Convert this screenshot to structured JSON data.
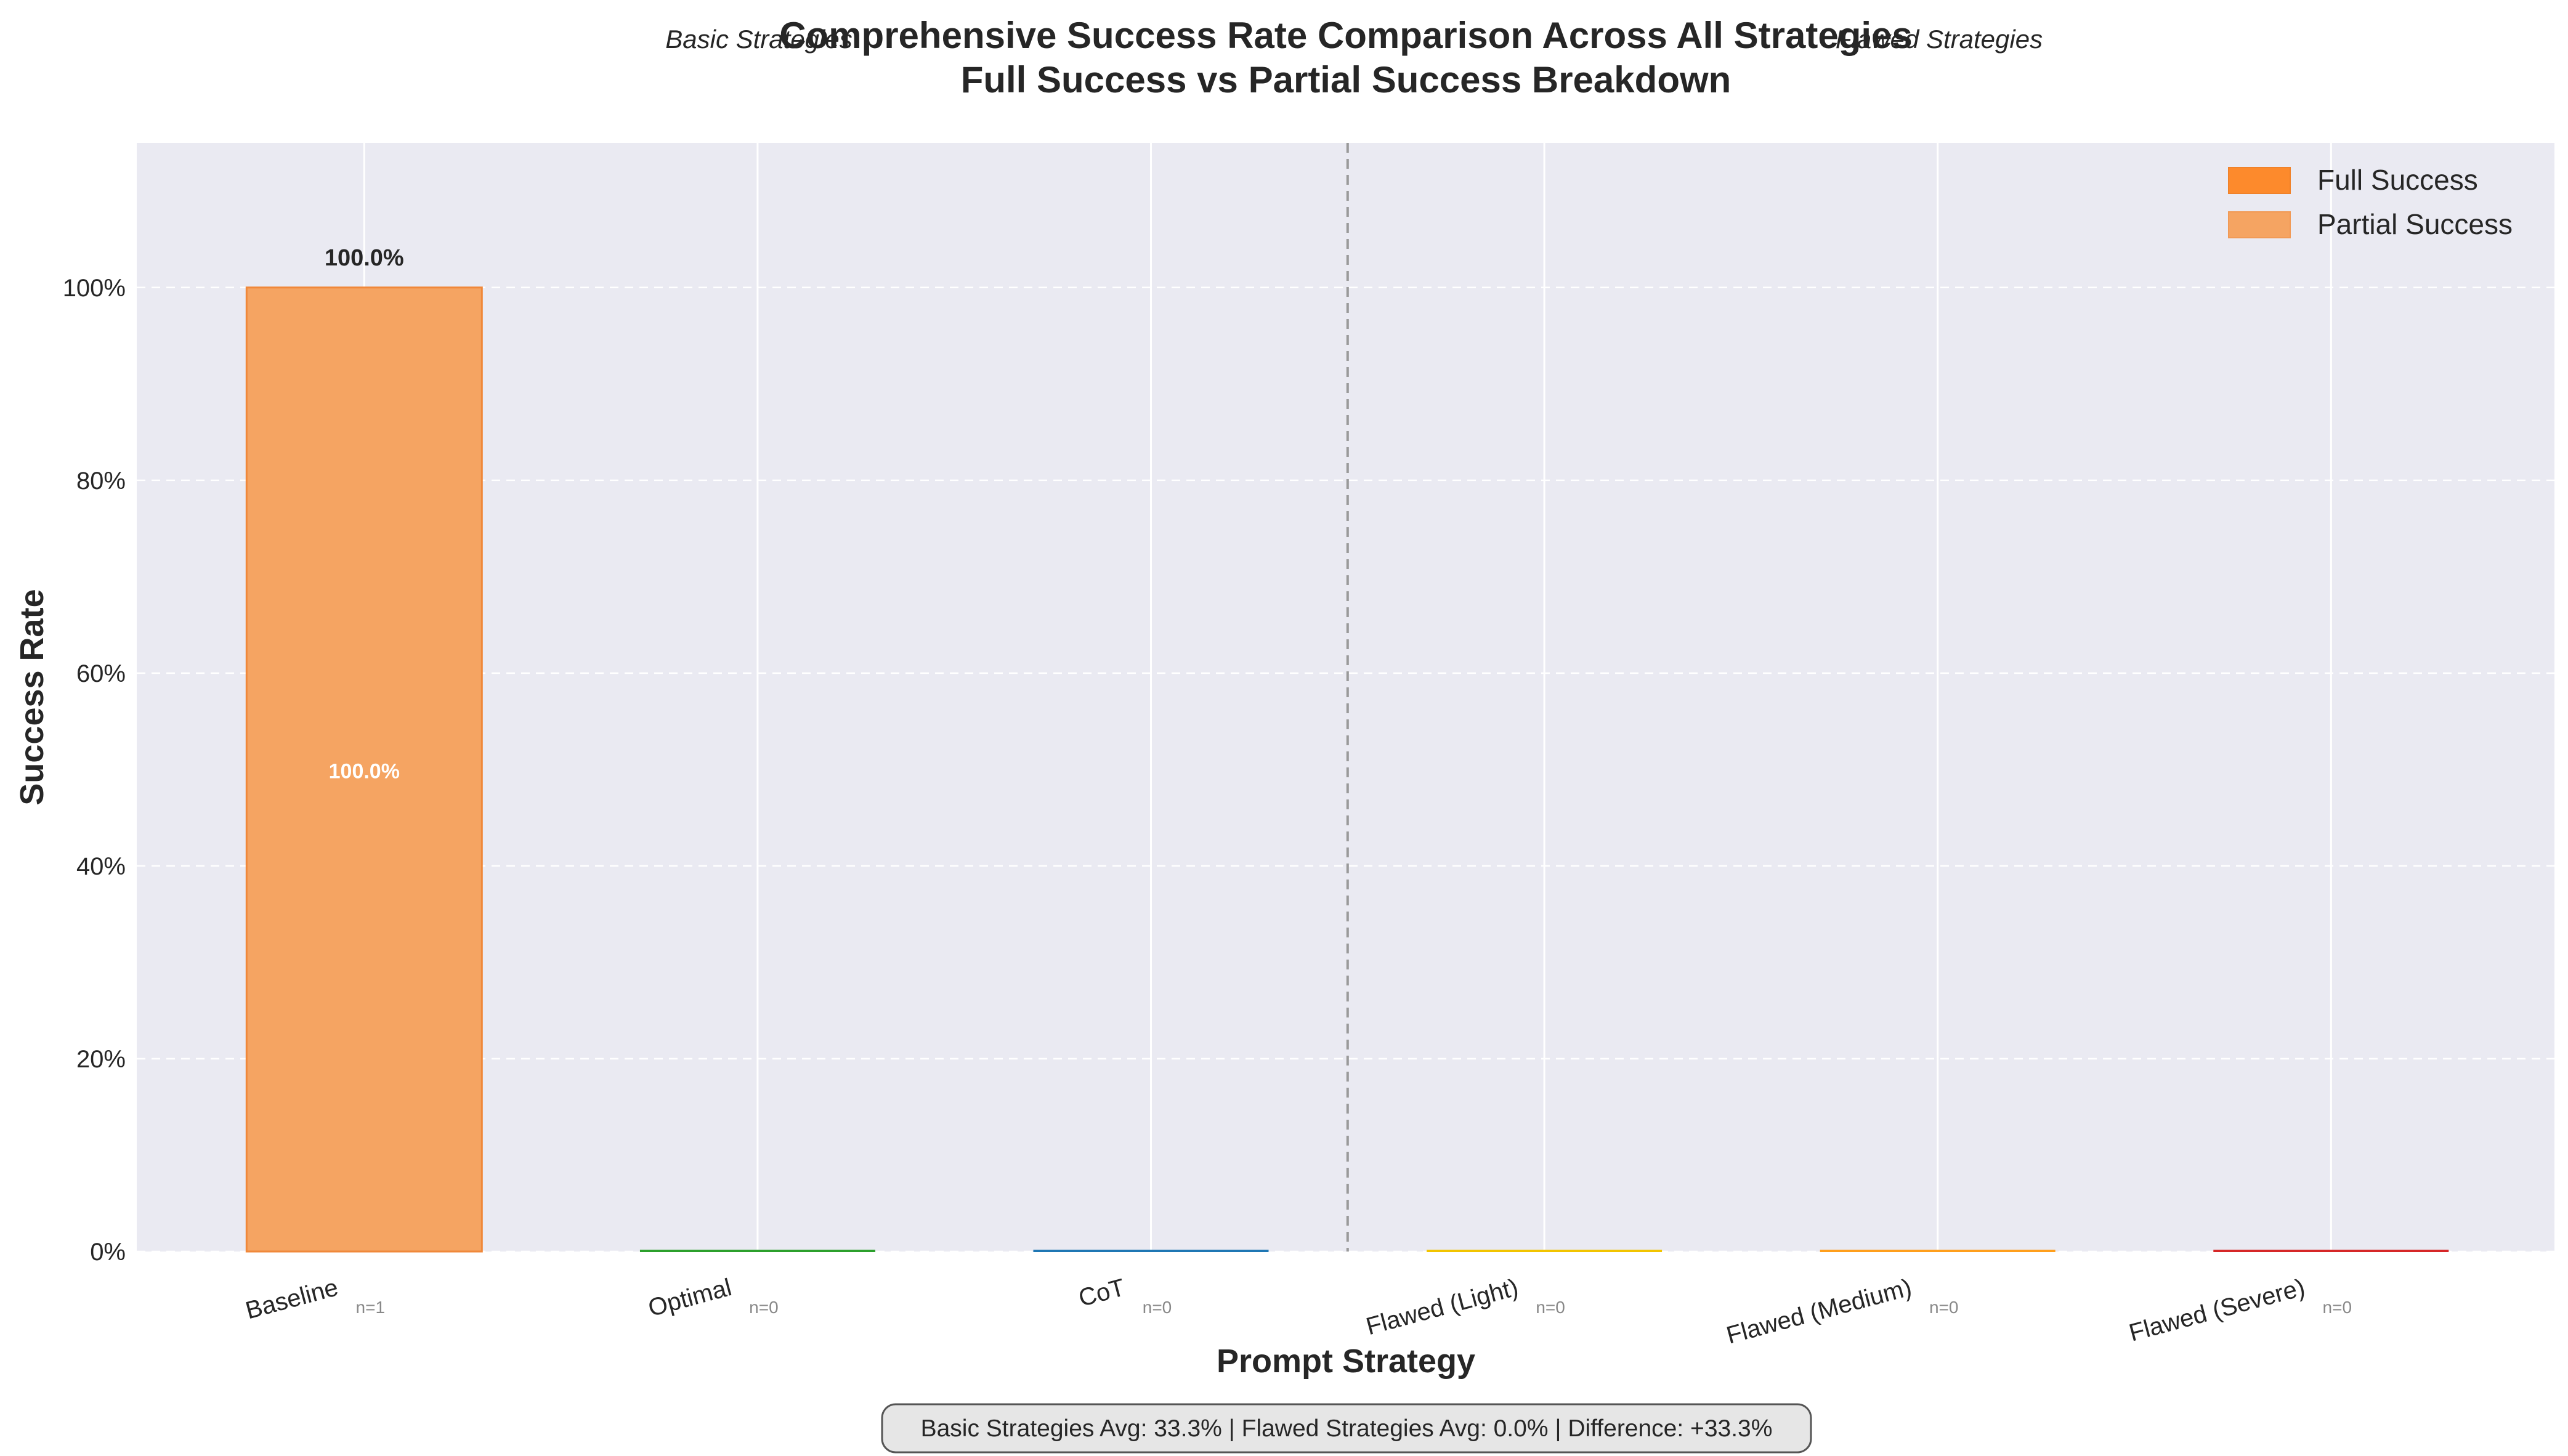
{
  "chart_data": {
    "type": "bar",
    "title_line1": "Comprehensive Success Rate Comparison Across All Strategies",
    "title_line2": "Full Success vs Partial Success Breakdown",
    "group_labels": [
      "Basic Strategies",
      "Flawed Strategies"
    ],
    "xlabel": "Prompt Strategy",
    "ylabel": "Success Rate",
    "ylim": [
      0,
      115
    ],
    "yticks": [
      0,
      20,
      40,
      60,
      80,
      100
    ],
    "ytick_labels": [
      "0%",
      "20%",
      "40%",
      "60%",
      "80%",
      "100%"
    ],
    "categories": [
      "Baseline",
      "Optimal",
      "CoT",
      "Flawed (Light)",
      "Flawed (Medium)",
      "Flawed (Severe)"
    ],
    "counts": [
      "n=1",
      "n=0",
      "n=0",
      "n=0",
      "n=0",
      "n=0"
    ],
    "bar_colors": [
      "#f0883a",
      "#2ca02c",
      "#1f77b4",
      "#f2c400",
      "#ff9f1c",
      "#d62728"
    ],
    "series": [
      {
        "name": "Full Success",
        "color": "#fd8a2c",
        "values": [
          0,
          0,
          0,
          0,
          0,
          0
        ]
      },
      {
        "name": "Partial Success",
        "color": "#f5a462",
        "values": [
          100,
          0,
          0,
          0,
          0,
          0
        ]
      }
    ],
    "data_labels": {
      "top": [
        "100.0%",
        "",
        "",
        "",
        "",
        ""
      ],
      "inside": [
        "100.0%",
        "",
        "",
        "",
        "",
        ""
      ]
    },
    "legend": {
      "placement": "top-right",
      "entries": [
        "Full Success",
        "Partial Success"
      ]
    },
    "group_separator_after_index": 2,
    "grid": true,
    "summary": "Basic Strategies Avg: 33.3% | Flawed Strategies Avg: 0.0% | Difference: +33.3%"
  }
}
